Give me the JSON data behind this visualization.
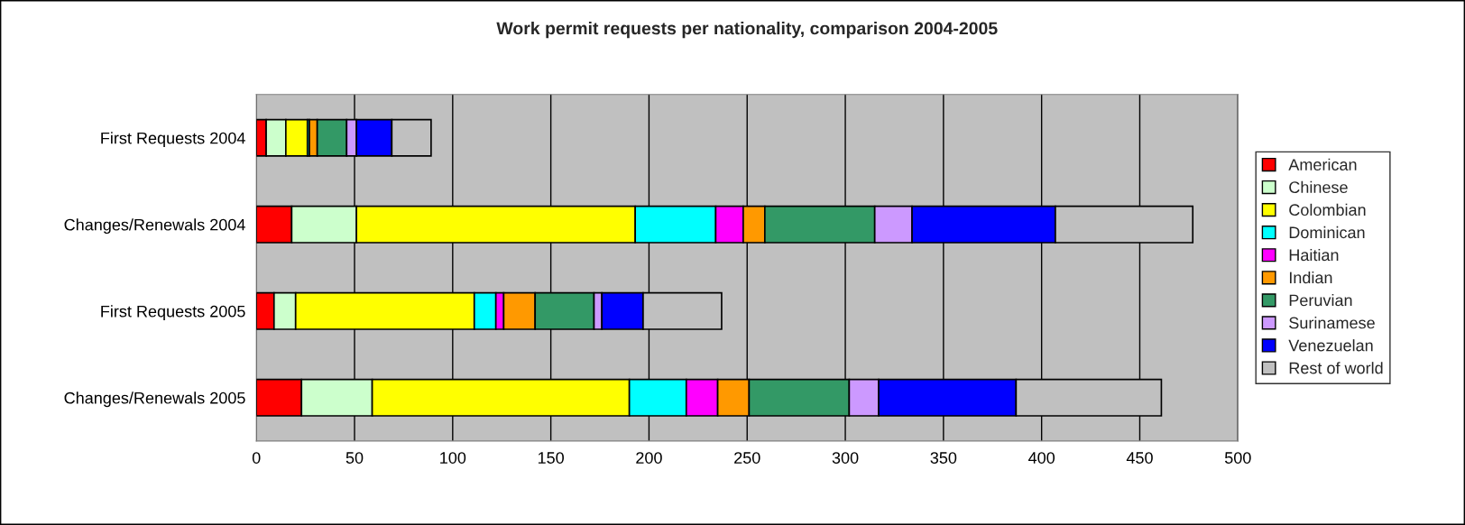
{
  "chart_data": {
    "type": "bar",
    "orientation": "horizontal",
    "stacked": true,
    "title": "Work permit requests per nationality, comparison 2004-2005",
    "categories": [
      "First Requests 2004",
      "Changes/Renewals 2004",
      "First Requests 2005",
      "Changes/Renewals 2005"
    ],
    "series": [
      {
        "name": "American",
        "color": "#ff0000",
        "values": [
          5,
          18,
          9,
          23
        ]
      },
      {
        "name": "Chinese",
        "color": "#ccffcc",
        "values": [
          10,
          33,
          11,
          36
        ]
      },
      {
        "name": "Colombian",
        "color": "#ffff00",
        "values": [
          11,
          142,
          91,
          131
        ]
      },
      {
        "name": "Dominican",
        "color": "#00ffff",
        "values": [
          1,
          41,
          11,
          29
        ]
      },
      {
        "name": "Haitian",
        "color": "#ff00ff",
        "values": [
          0,
          14,
          4,
          16
        ]
      },
      {
        "name": "Indian",
        "color": "#ff9900",
        "values": [
          4,
          11,
          16,
          16
        ]
      },
      {
        "name": "Peruvian",
        "color": "#339966",
        "values": [
          15,
          56,
          30,
          51
        ]
      },
      {
        "name": "Surinamese",
        "color": "#cc99ff",
        "values": [
          5,
          19,
          4,
          15
        ]
      },
      {
        "name": "Venezuelan",
        "color": "#0000ff",
        "values": [
          18,
          73,
          21,
          70
        ]
      },
      {
        "name": "Rest of world",
        "color": "#c0c0c0",
        "values": [
          20,
          70,
          40,
          74
        ]
      }
    ],
    "xlim": [
      0,
      500
    ],
    "xticks": [
      0,
      50,
      100,
      150,
      200,
      250,
      300,
      350,
      400,
      450,
      500
    ],
    "grid": "x",
    "legend": "right"
  }
}
